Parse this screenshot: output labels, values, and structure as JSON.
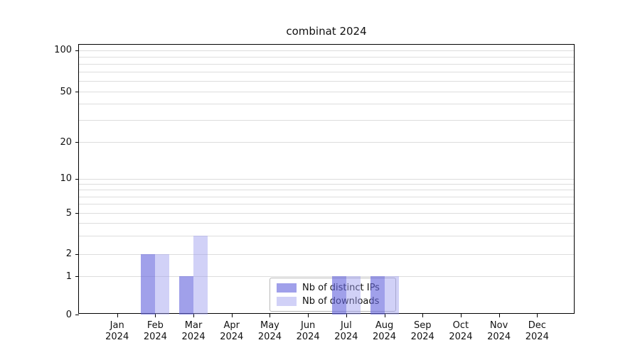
{
  "chart_data": {
    "type": "bar",
    "title": "combinat 2024",
    "categories": [
      {
        "month": "Jan",
        "year": "2024"
      },
      {
        "month": "Feb",
        "year": "2024"
      },
      {
        "month": "Mar",
        "year": "2024"
      },
      {
        "month": "Apr",
        "year": "2024"
      },
      {
        "month": "May",
        "year": "2024"
      },
      {
        "month": "Jun",
        "year": "2024"
      },
      {
        "month": "Jul",
        "year": "2024"
      },
      {
        "month": "Aug",
        "year": "2024"
      },
      {
        "month": "Sep",
        "year": "2024"
      },
      {
        "month": "Oct",
        "year": "2024"
      },
      {
        "month": "Nov",
        "year": "2024"
      },
      {
        "month": "Dec",
        "year": "2024"
      }
    ],
    "series": [
      {
        "name": "Nb of distinct IPs",
        "color": "rgba(102,102,221,0.62)",
        "values": [
          0,
          2,
          1,
          0,
          0,
          0,
          1,
          1,
          0,
          0,
          0,
          0
        ]
      },
      {
        "name": "Nb of downloads",
        "color": "rgba(153,153,238,0.45)",
        "values": [
          0,
          2,
          3,
          0,
          0,
          0,
          1,
          1,
          0,
          0,
          0,
          0
        ]
      }
    ],
    "y_ticks": [
      0,
      1,
      2,
      5,
      10,
      20,
      50,
      100
    ],
    "grid_values": [
      1,
      2,
      3,
      4,
      5,
      6,
      7,
      8,
      9,
      10,
      20,
      30,
      40,
      50,
      60,
      70,
      80,
      90,
      100
    ],
    "y_scale_anchors": [
      {
        "value": 0,
        "frac": 1.0
      },
      {
        "value": 1,
        "frac": 0.858
      },
      {
        "value": 2,
        "frac": 0.776
      },
      {
        "value": 5,
        "frac": 0.624
      },
      {
        "value": 10,
        "frac": 0.497
      },
      {
        "value": 20,
        "frac": 0.361
      },
      {
        "value": 50,
        "frac": 0.174
      },
      {
        "value": 100,
        "frac": 0.021
      }
    ],
    "ylim": [
      0,
      110
    ],
    "grid": true,
    "legend_position": "lower center"
  }
}
